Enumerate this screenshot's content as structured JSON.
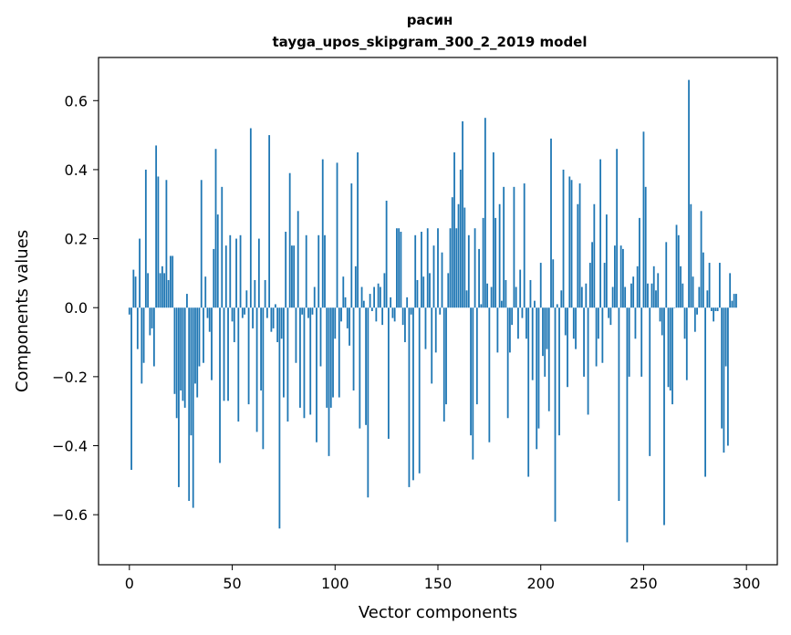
{
  "chart_data": {
    "type": "bar",
    "title_line1": "расин",
    "title_line2": "tayga_upos_skipgram_300_2_2019 model",
    "xlabel": "Vector components",
    "ylabel": "Components values",
    "xlim": [
      -15,
      315
    ],
    "ylim": [
      -0.745,
      0.725
    ],
    "xticks": [
      0,
      50,
      100,
      150,
      200,
      250,
      300
    ],
    "xtick_labels": [
      "0",
      "50",
      "100",
      "150",
      "200",
      "250",
      "300"
    ],
    "yticks": [
      -0.6,
      -0.4,
      -0.2,
      0.0,
      0.2,
      0.4,
      0.6
    ],
    "ytick_labels": [
      "−0.6",
      "−0.4",
      "−0.2",
      "0.0",
      "0.2",
      "0.4",
      "0.6"
    ],
    "bar_color": "#1f77b4",
    "grid": false,
    "values": [
      -0.02,
      -0.47,
      0.11,
      0.09,
      -0.12,
      0.2,
      -0.22,
      -0.16,
      0.4,
      0.1,
      -0.08,
      -0.06,
      -0.17,
      0.47,
      0.38,
      0.1,
      0.12,
      0.1,
      0.37,
      0.08,
      0.15,
      0.15,
      -0.25,
      -0.32,
      -0.52,
      -0.24,
      -0.27,
      -0.29,
      0.04,
      -0.56,
      -0.37,
      -0.58,
      -0.22,
      -0.26,
      -0.17,
      0.37,
      -0.16,
      0.09,
      -0.03,
      -0.07,
      -0.21,
      0.17,
      0.46,
      0.27,
      -0.45,
      0.35,
      -0.27,
      0.18,
      -0.27,
      0.21,
      -0.04,
      -0.1,
      0.2,
      -0.33,
      0.21,
      -0.03,
      -0.02,
      0.05,
      -0.28,
      0.52,
      -0.06,
      0.08,
      -0.36,
      0.2,
      -0.24,
      -0.41,
      0.08,
      -0.03,
      0.5,
      -0.07,
      -0.06,
      0.01,
      -0.1,
      -0.64,
      -0.09,
      -0.26,
      0.22,
      -0.33,
      0.39,
      0.18,
      0.18,
      -0.16,
      0.28,
      -0.29,
      -0.02,
      -0.32,
      0.21,
      -0.03,
      -0.31,
      -0.02,
      0.06,
      -0.39,
      0.21,
      -0.17,
      0.43,
      0.21,
      -0.29,
      -0.43,
      -0.29,
      -0.26,
      -0.09,
      0.42,
      -0.26,
      -0.04,
      0.09,
      0.03,
      -0.06,
      -0.11,
      0.36,
      -0.24,
      0.12,
      0.45,
      -0.35,
      0.06,
      0.02,
      -0.34,
      -0.55,
      0.04,
      -0.01,
      0.06,
      -0.04,
      0.07,
      0.06,
      -0.05,
      0.1,
      0.31,
      -0.38,
      0.03,
      -0.03,
      -0.04,
      0.23,
      0.23,
      0.22,
      -0.05,
      -0.1,
      0.03,
      -0.52,
      -0.02,
      -0.5,
      0.21,
      0.08,
      -0.48,
      0.22,
      0.09,
      -0.12,
      0.23,
      0.1,
      -0.22,
      0.18,
      -0.13,
      0.23,
      -0.02,
      0.16,
      -0.33,
      -0.28,
      0.1,
      0.23,
      0.32,
      0.45,
      0.23,
      0.3,
      0.4,
      0.54,
      0.29,
      0.05,
      0.21,
      -0.37,
      -0.44,
      0.23,
      -0.28,
      0.17,
      0.01,
      0.26,
      0.55,
      0.07,
      -0.39,
      0.06,
      0.45,
      0.26,
      -0.13,
      0.3,
      0.02,
      0.35,
      0.08,
      -0.32,
      -0.13,
      -0.05,
      0.35,
      0.06,
      -0.09,
      0.11,
      -0.03,
      0.36,
      -0.09,
      -0.49,
      0.08,
      -0.21,
      0.02,
      -0.41,
      -0.35,
      0.13,
      -0.14,
      -0.2,
      -0.12,
      -0.3,
      0.49,
      0.14,
      -0.62,
      0.01,
      -0.37,
      0.05,
      0.4,
      -0.08,
      -0.23,
      0.38,
      0.37,
      -0.09,
      -0.12,
      0.3,
      0.36,
      0.06,
      -0.2,
      0.07,
      -0.31,
      0.13,
      0.19,
      0.3,
      -0.17,
      -0.09,
      0.43,
      -0.16,
      0.13,
      0.27,
      -0.03,
      -0.05,
      0.06,
      0.18,
      0.46,
      -0.56,
      0.18,
      0.17,
      0.06,
      -0.68,
      -0.2,
      0.07,
      0.09,
      -0.09,
      0.12,
      0.26,
      -0.2,
      0.51,
      0.35,
      0.07,
      -0.43,
      0.07,
      0.12,
      0.05,
      0.1,
      -0.04,
      -0.08,
      -0.63,
      0.19,
      -0.23,
      -0.24,
      -0.28,
      0.0,
      0.24,
      0.21,
      0.12,
      0.07,
      -0.09,
      -0.21,
      0.66,
      0.3,
      0.09,
      -0.07,
      -0.02,
      0.06,
      0.28,
      0.16,
      -0.49,
      0.05,
      0.13,
      -0.01,
      -0.04,
      -0.01,
      -0.01,
      0.13,
      -0.35,
      -0.42,
      -0.17,
      -0.4,
      0.1,
      0.02,
      0.04,
      0.04
    ]
  }
}
